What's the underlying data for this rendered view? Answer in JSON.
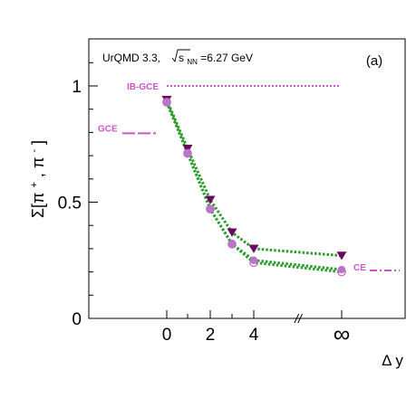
{
  "chart_data": {
    "type": "line",
    "panel_label": "(a)",
    "annotation_text": "UrQMD 3.3,",
    "annotation_sqrt": "s",
    "annotation_sub": "NN",
    "annotation_value": "=6.27 GeV",
    "ylabel_main": "Σ[π",
    "ylabel_sup1": "+",
    "ylabel_mid": ", π",
    "ylabel_sup2": "-",
    "ylabel_end": "]",
    "xlabel": "Δ y",
    "ylim": [
      0,
      1.2
    ],
    "x_ticks": [
      {
        "label": "0",
        "x": 0
      },
      {
        "label": "2",
        "x": 2
      },
      {
        "label": "4",
        "x": 4
      },
      {
        "label": "∞",
        "x": 8
      }
    ],
    "y_ticks": [
      {
        "label": "0",
        "y": 0
      },
      {
        "label": "0.5",
        "y": 0.5
      },
      {
        "label": "1",
        "y": 1.0
      }
    ],
    "x_axis_break": "//",
    "reference_lines": [
      {
        "label": "IB-GCE",
        "y": 1.0,
        "color": "#cc55cc"
      },
      {
        "label": "GCE",
        "y": 0.8,
        "color": "#cc55cc"
      },
      {
        "label": "CE",
        "y": 0.21,
        "color": "#cc55cc"
      }
    ],
    "series": [
      {
        "marker": "triangle-down-filled",
        "color": "#6a0a5f",
        "line_color": "#2e9b2e",
        "x": [
          0,
          1,
          2,
          3,
          4,
          8
        ],
        "y": [
          0.94,
          0.73,
          0.51,
          0.37,
          0.3,
          0.27
        ]
      },
      {
        "marker": "circle-filled",
        "color": "#b07cc6",
        "line_color": "#2e9b2e",
        "x": [
          0,
          1,
          2,
          3,
          4,
          8
        ],
        "y": [
          0.93,
          0.71,
          0.47,
          0.32,
          0.25,
          0.21
        ]
      },
      {
        "marker": "circle-open",
        "color": "#cc66cc",
        "line_color": "#2e9b2e",
        "x": [
          0,
          1,
          2,
          3,
          4,
          8
        ],
        "y": [
          0.93,
          0.71,
          0.47,
          0.32,
          0.24,
          0.2
        ]
      }
    ]
  }
}
